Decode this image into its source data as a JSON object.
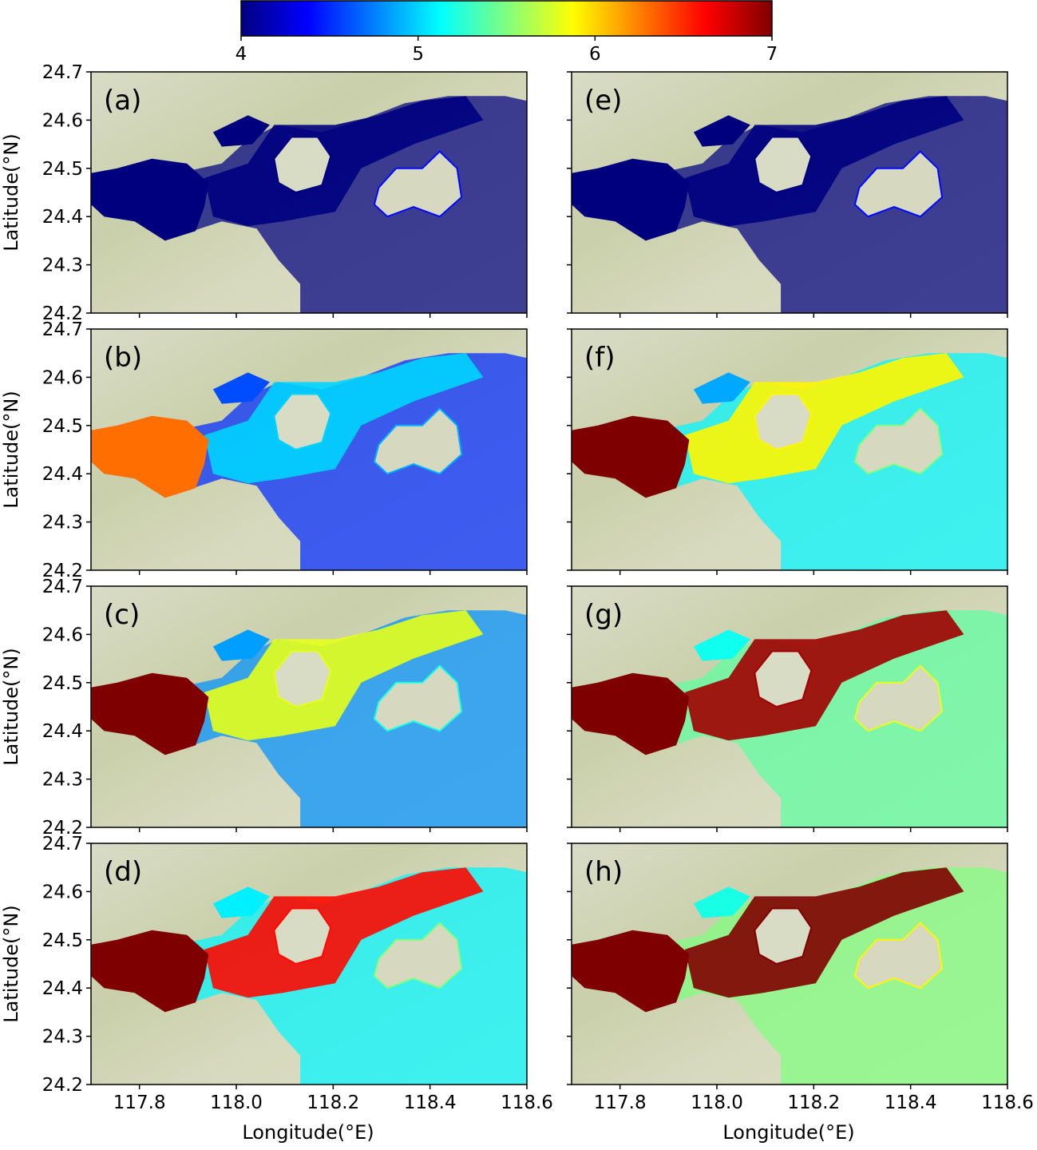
{
  "colorbar": {
    "ticks": [
      4,
      5,
      6,
      7
    ],
    "min": 4,
    "max": 7,
    "colormap": "jet",
    "stops": [
      "#00007f",
      "#0000ff",
      "#007fff",
      "#00ffff",
      "#7fff7f",
      "#ffff00",
      "#ff7f00",
      "#ff0000",
      "#7f0000"
    ]
  },
  "chart_data": {
    "type": "heatmap",
    "layout": "4 rows x 2 columns of map panels sharing one colorbar",
    "panels": [
      {
        "label": "(a)",
        "extent": {
          "lon": [
            117.7,
            118.6
          ],
          "lat": [
            24.2,
            24.7
          ]
        },
        "upstream_value": 4.0,
        "mid_value": 4.0,
        "sea_value": 4.0
      },
      {
        "label": "(b)",
        "extent": {
          "lon": [
            117.7,
            118.6
          ],
          "lat": [
            24.2,
            24.7
          ]
        },
        "upstream_value": 6.3,
        "mid_value": 5.0,
        "sea_value": 4.5
      },
      {
        "label": "(c)",
        "extent": {
          "lon": [
            117.7,
            118.6
          ],
          "lat": [
            24.2,
            24.7
          ]
        },
        "upstream_value": 7.0,
        "mid_value": 5.8,
        "sea_value": 4.8
      },
      {
        "label": "(d)",
        "extent": {
          "lon": [
            117.7,
            118.6
          ],
          "lat": [
            24.2,
            24.7
          ]
        },
        "upstream_value": 7.0,
        "mid_value": 6.6,
        "sea_value": 5.1
      },
      {
        "label": "(e)",
        "extent": {
          "lon": [
            117.7,
            118.6
          ],
          "lat": [
            24.2,
            24.7
          ]
        },
        "upstream_value": 4.0,
        "mid_value": 4.0,
        "sea_value": 4.0
      },
      {
        "label": "(f)",
        "extent": {
          "lon": [
            117.7,
            118.6
          ],
          "lat": [
            24.2,
            24.7
          ]
        },
        "upstream_value": 7.0,
        "mid_value": 5.9,
        "sea_value": 5.1
      },
      {
        "label": "(g)",
        "extent": {
          "lon": [
            117.7,
            118.6
          ],
          "lat": [
            24.2,
            24.7
          ]
        },
        "upstream_value": 7.0,
        "mid_value": 6.9,
        "sea_value": 5.4
      },
      {
        "label": "(h)",
        "extent": {
          "lon": [
            117.7,
            118.6
          ],
          "lat": [
            24.2,
            24.7
          ]
        },
        "upstream_value": 7.0,
        "mid_value": 7.0,
        "sea_value": 5.5
      }
    ],
    "x_ticks": [
      "117.8",
      "118.0",
      "118.2",
      "118.4",
      "118.6"
    ],
    "y_ticks": [
      "24.2",
      "24.3",
      "24.4",
      "24.5",
      "24.6",
      "24.7"
    ],
    "xlabel": "Longitude(°E)",
    "ylabel": "Latitude(°N)",
    "xlim": [
      117.7,
      118.6
    ],
    "ylim": [
      24.2,
      24.7
    ]
  }
}
